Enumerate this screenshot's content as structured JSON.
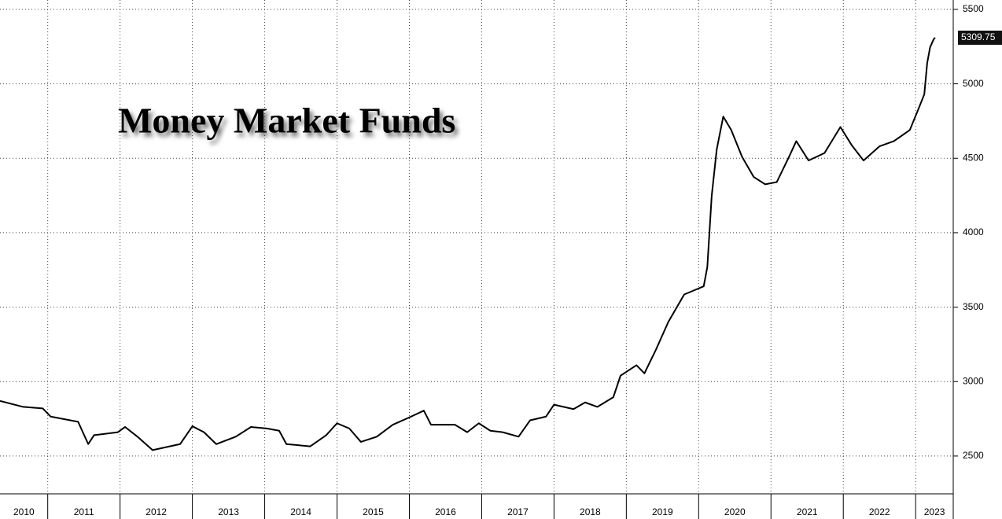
{
  "chart_data": {
    "type": "line",
    "title": "Money Market Funds",
    "x": [
      2010.34,
      2010.66,
      2010.93,
      2011.04,
      2011.42,
      2011.56,
      2011.64,
      2011.97,
      2012.07,
      2012.24,
      2012.45,
      2012.83,
      2013.0,
      2013.16,
      2013.33,
      2013.6,
      2013.81,
      2014.03,
      2014.2,
      2014.3,
      2014.63,
      2014.85,
      2015.0,
      2015.17,
      2015.33,
      2015.55,
      2015.77,
      2015.98,
      2016.2,
      2016.3,
      2016.63,
      2016.8,
      2016.96,
      2017.12,
      2017.29,
      2017.51,
      2017.67,
      2017.89,
      2018.0,
      2018.27,
      2018.43,
      2018.6,
      2018.82,
      2018.92,
      2019.14,
      2019.25,
      2019.41,
      2019.58,
      2019.8,
      2020.07,
      2020.12,
      2020.18,
      2020.25,
      2020.34,
      2020.45,
      2020.6,
      2020.76,
      2020.92,
      2021.08,
      2021.25,
      2021.35,
      2021.52,
      2021.74,
      2021.96,
      2022.12,
      2022.28,
      2022.5,
      2022.7,
      2022.92,
      2023.03,
      2023.12,
      2023.16,
      2023.2,
      2023.25,
      2023.27
    ],
    "series": [
      {
        "name": "Money Market Funds",
        "color": "#000000",
        "values": [
          2870,
          2830,
          2820,
          2765,
          2730,
          2580,
          2640,
          2660,
          2695,
          2630,
          2540,
          2580,
          2700,
          2660,
          2580,
          2630,
          2695,
          2685,
          2670,
          2580,
          2565,
          2640,
          2720,
          2685,
          2595,
          2630,
          2710,
          2755,
          2805,
          2710,
          2710,
          2660,
          2720,
          2670,
          2660,
          2630,
          2740,
          2765,
          2845,
          2815,
          2860,
          2830,
          2895,
          3040,
          3110,
          3055,
          3215,
          3400,
          3585,
          3640,
          3770,
          4245,
          4560,
          4780,
          4690,
          4510,
          4375,
          4325,
          4340,
          4510,
          4615,
          4485,
          4535,
          4710,
          4585,
          4485,
          4580,
          4615,
          4690,
          4820,
          4930,
          5140,
          5245,
          5300,
          5309.75
        ]
      }
    ],
    "xlim": [
      2010.34,
      2023.52
    ],
    "xticks": [
      2010,
      2011,
      2012,
      2013,
      2014,
      2015,
      2016,
      2017,
      2018,
      2019,
      2020,
      2021,
      2022,
      2023
    ],
    "ylim": [
      2246,
      5563
    ],
    "yticks": [
      2500,
      3000,
      3500,
      4000,
      4500,
      5000,
      5500
    ],
    "grid": true
  }
}
